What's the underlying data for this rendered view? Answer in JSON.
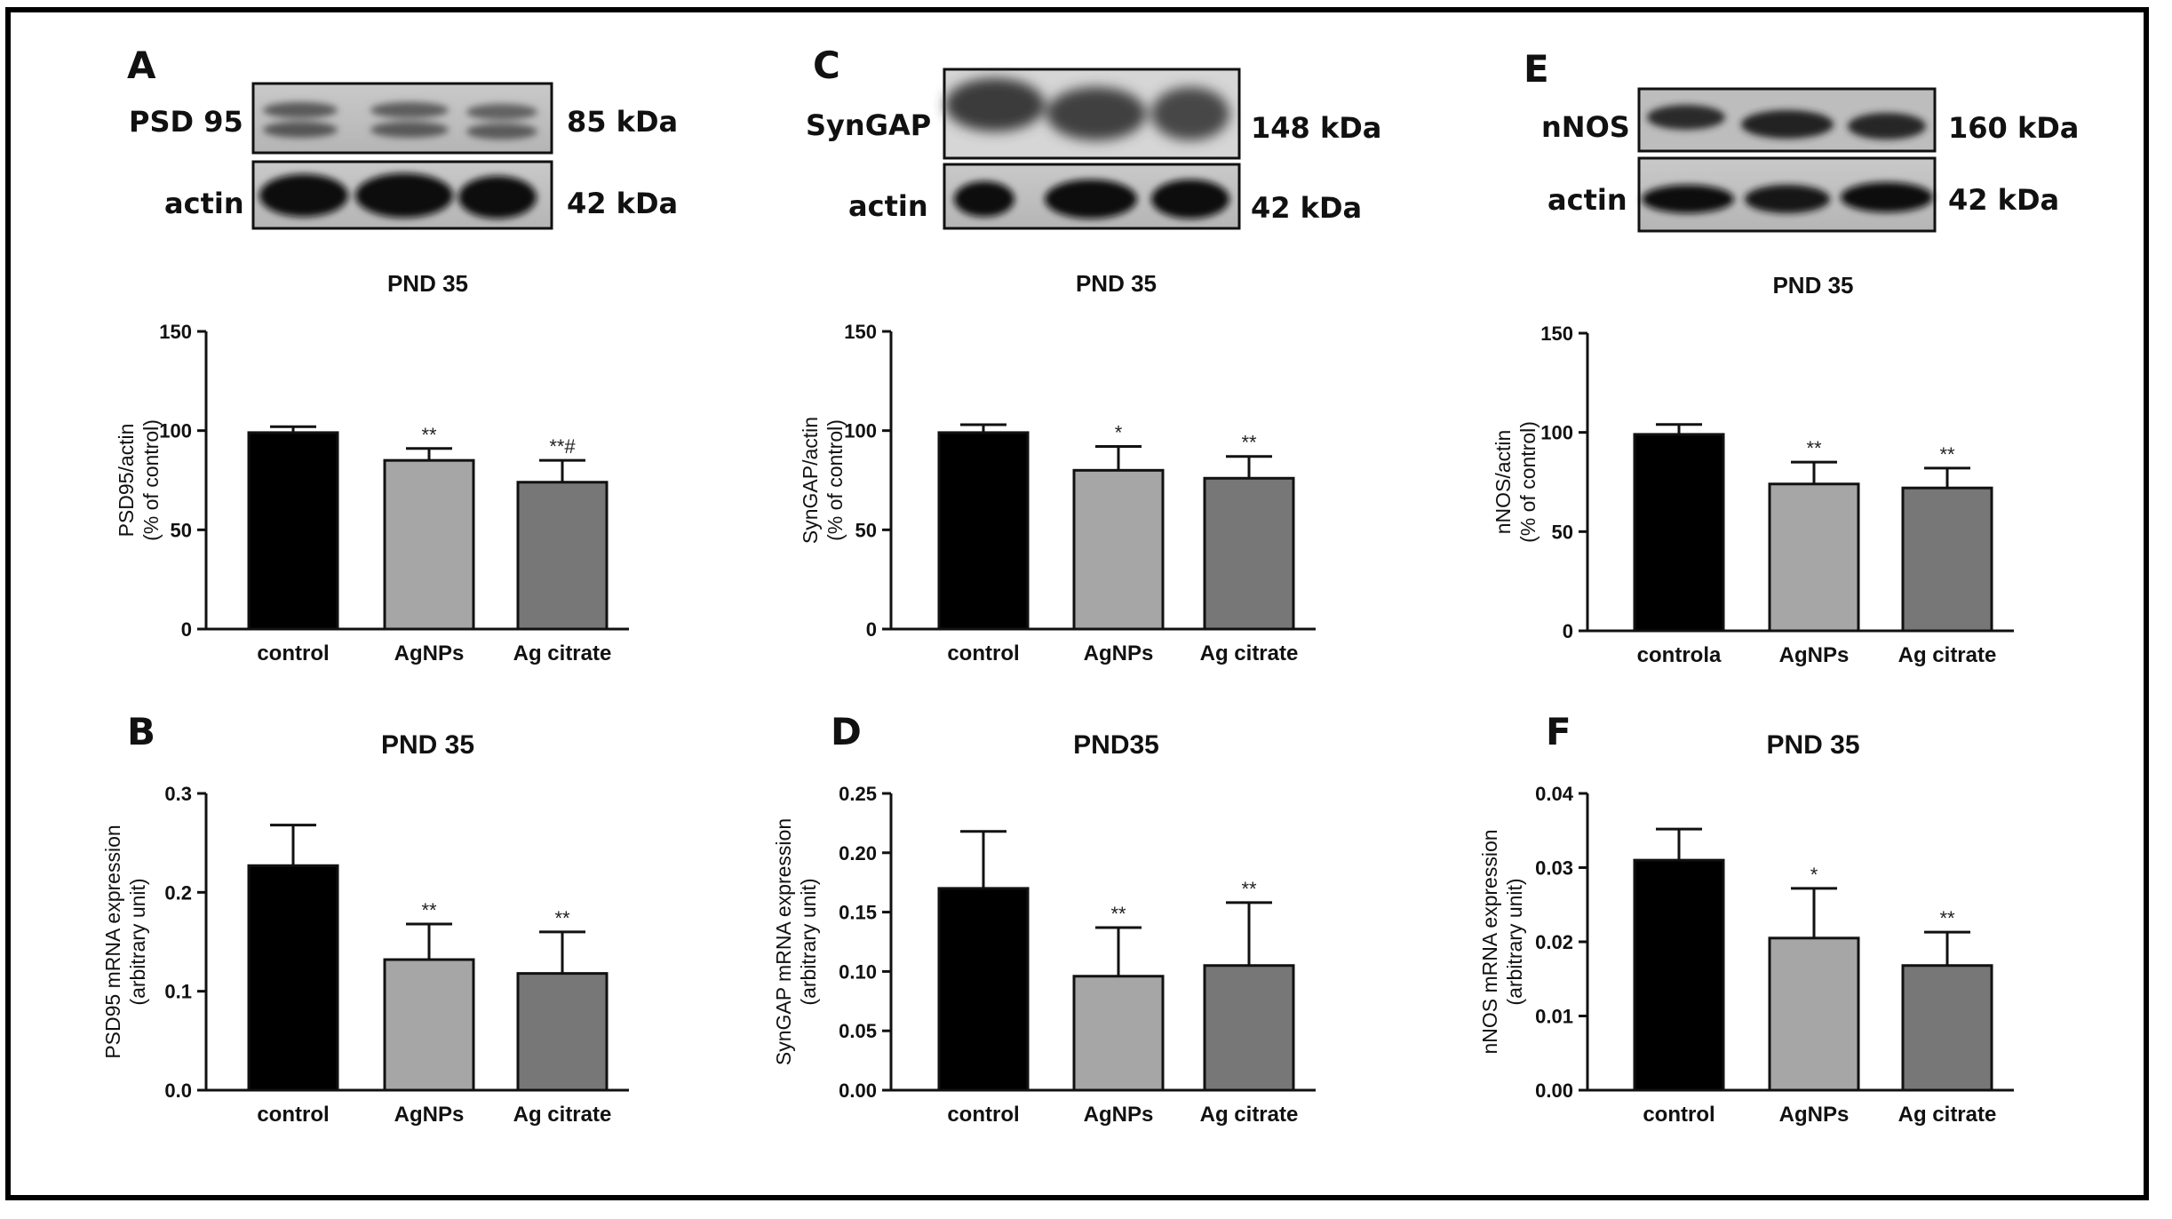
{
  "panels": {
    "A": "A",
    "B": "B",
    "C": "C",
    "D": "D",
    "E": "E",
    "F": "F"
  },
  "blots": [
    {
      "top_label": "PSD 95",
      "top_kda": "85 kDa",
      "bottom_label": "actin",
      "bottom_kda": "42 kDa"
    },
    {
      "top_label": "SynGAP",
      "top_kda": "148 kDa",
      "bottom_label": "actin",
      "bottom_kda": "42 kDa"
    },
    {
      "top_label": "nNOS",
      "top_kda": "160 kDa",
      "bottom_label": "actin",
      "bottom_kda": "42 kDa"
    }
  ],
  "colors": {
    "control": "#000000",
    "AgNPs": "#a6a6a6",
    "Ag citrate": "#777777"
  },
  "chart_data": [
    {
      "type": "bar",
      "panel": "A",
      "title": "PND 35",
      "ylabel": [
        "PSD95/actin",
        "(% of control)"
      ],
      "categories": [
        "control",
        "AgNPs",
        "Ag citrate"
      ],
      "values": [
        99,
        85,
        74
      ],
      "errors": [
        3,
        6,
        11
      ],
      "significance": [
        "",
        "**",
        "**#"
      ],
      "ylim": [
        0,
        150
      ],
      "yticks": [
        0,
        50,
        100,
        150
      ],
      "tick_labels": [
        "0",
        "50",
        "100",
        "150"
      ]
    },
    {
      "type": "bar",
      "panel": "C",
      "title": "PND 35",
      "ylabel": [
        "SynGAP/actin",
        "(% of control)"
      ],
      "categories": [
        "control",
        "AgNPs",
        "Ag citrate"
      ],
      "values": [
        99,
        80,
        76
      ],
      "errors": [
        4,
        12,
        11
      ],
      "significance": [
        "",
        "*",
        "**"
      ],
      "ylim": [
        0,
        150
      ],
      "yticks": [
        0,
        50,
        100,
        150
      ],
      "tick_labels": [
        "0",
        "50",
        "100",
        "150"
      ]
    },
    {
      "type": "bar",
      "panel": "E",
      "title": "PND 35",
      "ylabel": [
        "nNOS/actin",
        "(% of control)"
      ],
      "categories": [
        "controla",
        "AgNPs",
        "Ag citrate"
      ],
      "values": [
        99,
        74,
        72
      ],
      "errors": [
        5,
        11,
        10
      ],
      "significance": [
        "",
        "**",
        "**"
      ],
      "ylim": [
        0,
        150
      ],
      "yticks": [
        0,
        50,
        100,
        150
      ],
      "tick_labels": [
        "0",
        "50",
        "100",
        "150"
      ]
    },
    {
      "type": "bar",
      "panel": "B",
      "title": "PND 35",
      "ylabel": [
        "PSD95 mRNA expression",
        "(arbitrary unit)"
      ],
      "categories": [
        "control",
        "AgNPs",
        "Ag citrate"
      ],
      "values": [
        0.227,
        0.132,
        0.118
      ],
      "errors": [
        0.041,
        0.036,
        0.042
      ],
      "significance": [
        "",
        "**",
        "**"
      ],
      "ylim": [
        0,
        0.3
      ],
      "yticks": [
        0,
        0.1,
        0.2,
        0.3
      ],
      "tick_labels": [
        "0.0",
        "0.1",
        "0.2",
        "0.3"
      ]
    },
    {
      "type": "bar",
      "panel": "D",
      "title": "PND35",
      "ylabel": [
        "SynGAP mRNA expression",
        "(arbitrary unit)"
      ],
      "categories": [
        "control",
        "AgNPs",
        "Ag citrate"
      ],
      "values": [
        0.17,
        0.096,
        0.105
      ],
      "errors": [
        0.048,
        0.041,
        0.053
      ],
      "significance": [
        "",
        "**",
        "**"
      ],
      "ylim": [
        0,
        0.25
      ],
      "yticks": [
        0,
        0.05,
        0.1,
        0.15,
        0.2,
        0.25
      ],
      "tick_labels": [
        "0.00",
        "0.05",
        "0.10",
        "0.15",
        "0.20",
        "0.25"
      ]
    },
    {
      "type": "bar",
      "panel": "F",
      "title": "PND 35",
      "ylabel": [
        "nNOS mRNA expression",
        "(arbitrary unit)"
      ],
      "categories": [
        "control",
        "AgNPs",
        "Ag citrate"
      ],
      "values": [
        0.031,
        0.0205,
        0.0168
      ],
      "errors": [
        0.0042,
        0.0067,
        0.0045
      ],
      "significance": [
        "",
        "*",
        "**"
      ],
      "ylim": [
        0,
        0.04
      ],
      "yticks": [
        0,
        0.01,
        0.02,
        0.03,
        0.04
      ],
      "tick_labels": [
        "0.00",
        "0.01",
        "0.02",
        "0.03",
        "0.04"
      ]
    }
  ]
}
